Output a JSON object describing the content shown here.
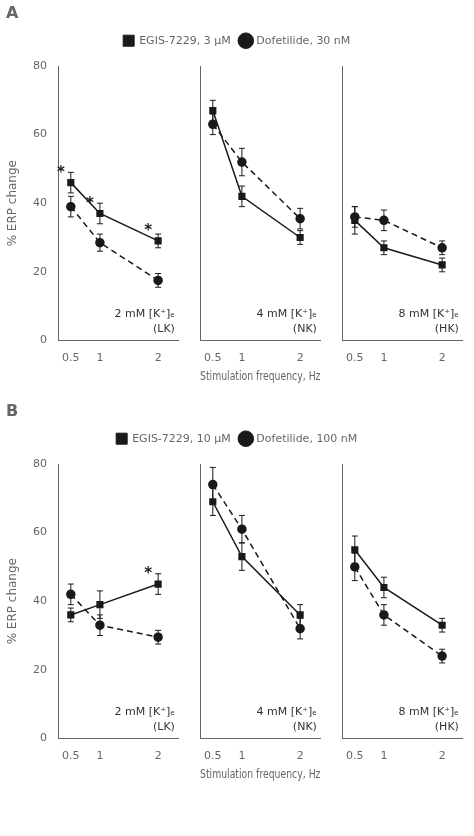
{
  "chart_data": [
    {
      "type": "line",
      "title": "A",
      "legend": "top",
      "ylabel": "% ERP change",
      "x": [
        0.5,
        1,
        2
      ],
      "xlim": [
        0.28,
        2.35
      ],
      "xticks": [
        0.5,
        1,
        2
      ],
      "ylim": [
        0,
        80
      ],
      "yticks": [
        0,
        20,
        40,
        60,
        80
      ],
      "grid": false,
      "series": [
        {
          "name": "EGIS-7229, 3 μM",
          "color": "#1a1a1a",
          "line_style": "solid",
          "marker": "square",
          "values": [
            46,
            37,
            29
          ],
          "errors": [
            3,
            3,
            2
          ]
        },
        {
          "name": "Dofetilide, 30 nM",
          "color": "#1a1a1a",
          "line_style": "dashed",
          "marker": "circle",
          "values": [
            39,
            28.5,
            17.5
          ],
          "errors": [
            3,
            2.5,
            2
          ]
        }
      ],
      "annotations": [
        {
          "text": "2 mM [K⁺]ₑ"
        },
        {
          "text": "(LK)"
        },
        {
          "text": "*",
          "series": "EGIS-7229, 3 μM",
          "x": 0.5
        },
        {
          "text": "*",
          "series": "EGIS-7229, 3 μM",
          "x": 1
        },
        {
          "text": "*",
          "series": "EGIS-7229, 3 μM",
          "x": 2
        }
      ]
    },
    {
      "type": "line",
      "xlabel": "Stimulation frequency, Hz",
      "tick_labels": "x",
      "x": [
        0.5,
        1,
        2
      ],
      "xlim": [
        0.28,
        2.35
      ],
      "xticks": [
        0.5,
        1,
        2
      ],
      "ylim": [
        0,
        80
      ],
      "yticks": [
        0,
        20,
        40,
        60,
        80
      ],
      "grid": false,
      "series": [
        {
          "name": "EGIS-7229, 3 μM",
          "color": "#1a1a1a",
          "line_style": "solid",
          "marker": "square",
          "values": [
            67,
            42,
            30
          ],
          "errors": [
            3,
            3,
            2
          ]
        },
        {
          "name": "Dofetilide, 30 nM",
          "color": "#1a1a1a",
          "line_style": "dashed",
          "marker": "circle",
          "values": [
            63,
            52,
            35.5
          ],
          "errors": [
            3,
            4,
            3
          ]
        }
      ],
      "annotations": [
        {
          "text": "4 mM [K⁺]ₑ"
        },
        {
          "text": "(NK)"
        }
      ]
    },
    {
      "type": "line",
      "tick_labels": "x",
      "x": [
        0.5,
        1,
        2
      ],
      "xlim": [
        0.28,
        2.35
      ],
      "xticks": [
        0.5,
        1,
        2
      ],
      "ylim": [
        0,
        80
      ],
      "yticks": [
        0,
        20,
        40,
        60,
        80
      ],
      "grid": false,
      "series": [
        {
          "name": "EGIS-7229, 3 μM",
          "color": "#1a1a1a",
          "line_style": "solid",
          "marker": "square",
          "values": [
            35,
            27,
            22
          ],
          "errors": [
            4,
            2,
            2
          ]
        },
        {
          "name": "Dofetilide, 30 nM",
          "color": "#1a1a1a",
          "line_style": "dashed",
          "marker": "circle",
          "values": [
            36,
            35,
            27
          ],
          "errors": [
            3,
            3,
            2
          ]
        }
      ],
      "annotations": [
        {
          "text": "8 mM [K⁺]ₑ"
        },
        {
          "text": "(HK)"
        }
      ]
    },
    {
      "type": "line",
      "title": "B",
      "legend": "top",
      "ylabel": "% ERP change",
      "x": [
        0.5,
        1,
        2
      ],
      "xlim": [
        0.28,
        2.35
      ],
      "xticks": [
        0.5,
        1,
        2
      ],
      "ylim": [
        0,
        80
      ],
      "yticks": [
        0,
        20,
        40,
        60,
        80
      ],
      "grid": false,
      "series": [
        {
          "name": "EGIS-7229, 10 μM",
          "color": "#1a1a1a",
          "line_style": "solid",
          "marker": "square",
          "values": [
            36,
            39,
            45
          ],
          "errors": [
            2,
            4,
            3
          ]
        },
        {
          "name": "Dofetilide, 100 nM",
          "color": "#1a1a1a",
          "line_style": "dashed",
          "marker": "circle",
          "values": [
            42,
            33,
            29.5
          ],
          "errors": [
            3,
            3,
            2
          ]
        }
      ],
      "annotations": [
        {
          "text": "2 mM [K⁺]ₑ"
        },
        {
          "text": "(LK)"
        },
        {
          "text": "*",
          "series": "EGIS-7229, 10 μM",
          "x": 2
        }
      ]
    },
    {
      "type": "line",
      "xlabel": "Stimulation frequency, Hz",
      "tick_labels": "x",
      "x": [
        0.5,
        1,
        2
      ],
      "xlim": [
        0.28,
        2.35
      ],
      "xticks": [
        0.5,
        1,
        2
      ],
      "ylim": [
        0,
        80
      ],
      "yticks": [
        0,
        20,
        40,
        60,
        80
      ],
      "grid": false,
      "series": [
        {
          "name": "EGIS-7229, 10 μM",
          "color": "#1a1a1a",
          "line_style": "solid",
          "marker": "square",
          "values": [
            69,
            53,
            36
          ],
          "errors": [
            4,
            4,
            3
          ]
        },
        {
          "name": "Dofetilide, 100 nM",
          "color": "#1a1a1a",
          "line_style": "dashed",
          "marker": "circle",
          "values": [
            74,
            61,
            32
          ],
          "errors": [
            5,
            4,
            3
          ]
        }
      ],
      "annotations": [
        {
          "text": "4 mM [K⁺]ₑ"
        },
        {
          "text": "(NK)"
        }
      ]
    },
    {
      "type": "line",
      "tick_labels": "x",
      "x": [
        0.5,
        1,
        2
      ],
      "xlim": [
        0.28,
        2.35
      ],
      "xticks": [
        0.5,
        1,
        2
      ],
      "ylim": [
        0,
        80
      ],
      "yticks": [
        0,
        20,
        40,
        60,
        80
      ],
      "grid": false,
      "series": [
        {
          "name": "EGIS-7229, 10 μM",
          "color": "#1a1a1a",
          "line_style": "solid",
          "marker": "square",
          "values": [
            55,
            44,
            33
          ],
          "errors": [
            4,
            3,
            2
          ]
        },
        {
          "name": "Dofetilide, 100 nM",
          "color": "#1a1a1a",
          "line_style": "dashed",
          "marker": "circle",
          "values": [
            50,
            36,
            24
          ],
          "errors": [
            4,
            3,
            2
          ]
        }
      ],
      "annotations": [
        {
          "text": "8 mM [K⁺]ₑ"
        },
        {
          "text": "(HK)"
        }
      ]
    }
  ]
}
